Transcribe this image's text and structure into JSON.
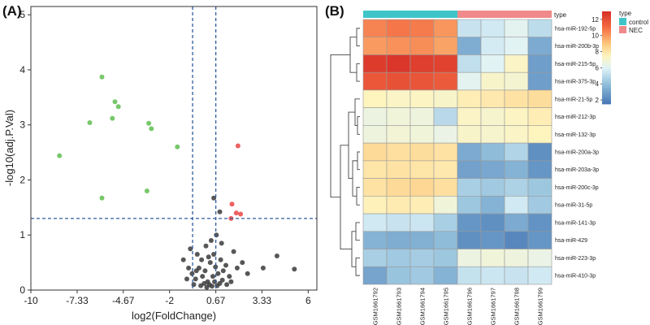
{
  "chart_data": [
    {
      "type": "scatter",
      "panel_label": "(A)",
      "xlabel": "log2(FoldChange)",
      "ylabel": "-log10(adj.P.Val)",
      "xlim": [
        -10,
        6.5
      ],
      "ylim": [
        0,
        5.15
      ],
      "xticks": [
        -10,
        -7.33,
        -4.67,
        -2,
        0.67,
        3.33,
        6
      ],
      "xtick_labels": [
        "-10",
        "-7.33",
        "-4.67",
        "-2",
        "0.67",
        "3.33",
        "6"
      ],
      "yticks": [
        0,
        1,
        2,
        3,
        4,
        5
      ],
      "ytick_labels": [
        "0",
        "1",
        "2",
        "3",
        "4",
        "5"
      ],
      "threshold_lines": {
        "x": [
          -0.67,
          0.67
        ],
        "y": 1.3
      },
      "colors": {
        "down": "#77c86a",
        "up": "#ef6060",
        "ns": "#3a3a3a",
        "threshold": "#2e5d9c"
      },
      "series": [
        {
          "name": "down",
          "points": [
            [
              -5.9,
              3.87
            ],
            [
              -5.15,
              3.42
            ],
            [
              -4.95,
              3.33
            ],
            [
              -5.3,
              3.12
            ],
            [
              -6.6,
              3.04
            ],
            [
              -3.2,
              3.03
            ],
            [
              -3.05,
              2.93
            ],
            [
              -1.55,
              2.6
            ],
            [
              -8.35,
              2.44
            ],
            [
              -3.3,
              1.8
            ],
            [
              -5.9,
              1.67
            ]
          ]
        },
        {
          "name": "up",
          "points": [
            [
              1.95,
              2.62
            ],
            [
              1.6,
              1.56
            ],
            [
              1.85,
              1.4
            ],
            [
              2.1,
              1.38
            ],
            [
              1.55,
              1.3
            ]
          ]
        },
        {
          "name": "ns",
          "points": [
            [
              0.55,
              1.67
            ],
            [
              0.9,
              1.42
            ],
            [
              -1.2,
              0.55
            ],
            [
              -0.9,
              0.4
            ],
            [
              -0.7,
              0.3
            ],
            [
              -0.5,
              0.2
            ],
            [
              -0.3,
              0.4
            ],
            [
              -0.1,
              0.25
            ],
            [
              0.05,
              0.35
            ],
            [
              0.2,
              0.15
            ],
            [
              0.35,
              0.5
            ],
            [
              0.5,
              0.25
            ],
            [
              0.65,
              0.42
            ],
            [
              0.8,
              0.3
            ],
            [
              0.95,
              0.55
            ],
            [
              1.1,
              0.35
            ],
            [
              1.25,
              0.45
            ],
            [
              1.45,
              0.25
            ],
            [
              1.7,
              0.7
            ],
            [
              1.9,
              0.4
            ],
            [
              2.2,
              0.5
            ],
            [
              2.5,
              0.3
            ],
            [
              3.4,
              0.4
            ],
            [
              4.2,
              0.62
            ],
            [
              5.2,
              0.38
            ],
            [
              -0.6,
              0.1
            ],
            [
              -0.2,
              0.08
            ],
            [
              0.0,
              0.12
            ],
            [
              0.15,
              0.05
            ],
            [
              0.3,
              0.1
            ],
            [
              0.45,
              0.07
            ],
            [
              0.6,
              0.15
            ],
            [
              0.75,
              0.08
            ],
            [
              0.9,
              0.12
            ],
            [
              1.05,
              0.18
            ],
            [
              -0.4,
              0.65
            ],
            [
              -0.8,
              0.75
            ],
            [
              0.1,
              0.8
            ],
            [
              0.4,
              0.9
            ],
            [
              0.7,
              1.0
            ],
            [
              1.0,
              0.85
            ],
            [
              -1.0,
              0.2
            ],
            [
              -0.45,
              0.35
            ],
            [
              0.25,
              0.6
            ],
            [
              1.3,
              0.1
            ],
            [
              1.55,
              0.15
            ],
            [
              -0.15,
              0.55
            ],
            [
              0.55,
              0.65
            ]
          ]
        }
      ]
    },
    {
      "type": "heatmap",
      "panel_label": "(B)",
      "columns": [
        "GSM1661792",
        "GSM1661793",
        "GSM1661794",
        "GSM1661795",
        "GSM1661796",
        "GSM1661797",
        "GSM1661798",
        "GSM1661799"
      ],
      "column_type": [
        "control",
        "control",
        "control",
        "control",
        "NEC",
        "NEC",
        "NEC",
        "NEC"
      ],
      "rows": [
        "hsa-miR-192-5p",
        "hsa-miR-200b-3p",
        "hsa-miR-215-5p",
        "hsa-miR-375-3p",
        "hsa-miR-21-5p",
        "hsa-miR-212-3p",
        "hsa-miR-132-3p",
        "hsa-miR-200a-3p",
        "hsa-miR-203a-3p",
        "hsa-miR-200c-3p",
        "hsa-miR-31-5p",
        "hsa-miR-141-3p",
        "hsa-miR-429",
        "hsa-miR-223-3p",
        "hsa-miR-410-3p"
      ],
      "values": [
        [
          10.5,
          10.8,
          10.7,
          10.1,
          5.4,
          5.6,
          6.2,
          5.1
        ],
        [
          10.0,
          10.2,
          10.3,
          9.8,
          3.4,
          5.7,
          6.1,
          3.3
        ],
        [
          12.6,
          12.8,
          12.5,
          12.4,
          5.2,
          6.1,
          7.3,
          2.9
        ],
        [
          11.7,
          11.9,
          11.8,
          11.6,
          6.2,
          7.2,
          7.0,
          2.9
        ],
        [
          7.5,
          7.3,
          7.4,
          7.2,
          7.7,
          7.9,
          8.1,
          8.3
        ],
        [
          6.6,
          6.8,
          6.7,
          5.0,
          7.3,
          7.1,
          7.4,
          7.7
        ],
        [
          6.7,
          6.9,
          6.8,
          6.5,
          7.2,
          7.1,
          7.3,
          7.5
        ],
        [
          8.4,
          8.2,
          8.3,
          8.1,
          3.3,
          3.9,
          4.8,
          2.4
        ],
        [
          8.0,
          8.1,
          8.0,
          7.9,
          3.0,
          3.2,
          3.6,
          2.6
        ],
        [
          8.1,
          8.4,
          8.5,
          8.2,
          4.6,
          4.4,
          4.7,
          4.3
        ],
        [
          7.6,
          7.8,
          7.7,
          6.8,
          4.3,
          3.6,
          5.6,
          4.4
        ],
        [
          5.6,
          5.4,
          5.5,
          4.6,
          2.6,
          2.4,
          3.3,
          2.5
        ],
        [
          3.6,
          3.4,
          3.5,
          3.9,
          2.4,
          2.6,
          2.1,
          2.6
        ],
        [
          4.6,
          4.4,
          4.5,
          4.3,
          6.6,
          6.8,
          6.7,
          6.5
        ],
        [
          3.1,
          4.2,
          4.4,
          3.6,
          5.3,
          5.5,
          5.4,
          5.6
        ]
      ],
      "annotation_label": "type",
      "legend": {
        "type_title": "type",
        "type_entries": [
          {
            "name": "control",
            "color": "#3fc5c8"
          },
          {
            "name": "NEC",
            "color": "#f08a8a"
          }
        ],
        "scale_ticks": [
          2,
          4,
          6,
          8,
          10,
          12
        ],
        "scale_range": [
          1.5,
          13
        ]
      }
    }
  ]
}
